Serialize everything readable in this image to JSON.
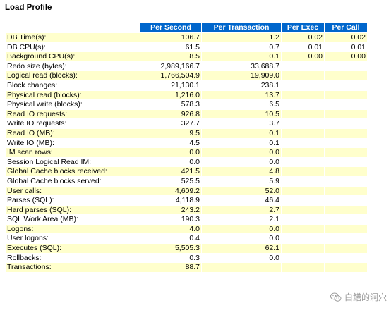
{
  "title": "Load Profile",
  "columns": [
    "",
    "Per Second",
    "Per Transaction",
    "Per Exec",
    "Per Call"
  ],
  "rows": [
    [
      "DB Time(s):",
      "106.7",
      "1.2",
      "0.02",
      "0.02"
    ],
    [
      "DB CPU(s):",
      "61.5",
      "0.7",
      "0.01",
      "0.01"
    ],
    [
      "Background CPU(s):",
      "8.5",
      "0.1",
      "0.00",
      "0.00"
    ],
    [
      "Redo size (bytes):",
      "2,989,166.7",
      "33,688.7",
      "",
      ""
    ],
    [
      "Logical read (blocks):",
      "1,766,504.9",
      "19,909.0",
      "",
      ""
    ],
    [
      "Block changes:",
      "21,130.1",
      "238.1",
      "",
      ""
    ],
    [
      "Physical read (blocks):",
      "1,216.0",
      "13.7",
      "",
      ""
    ],
    [
      "Physical write (blocks):",
      "578.3",
      "6.5",
      "",
      ""
    ],
    [
      "Read IO requests:",
      "926.8",
      "10.5",
      "",
      ""
    ],
    [
      "Write IO requests:",
      "327.7",
      "3.7",
      "",
      ""
    ],
    [
      "Read IO (MB):",
      "9.5",
      "0.1",
      "",
      ""
    ],
    [
      "Write IO (MB):",
      "4.5",
      "0.1",
      "",
      ""
    ],
    [
      "IM scan rows:",
      "0.0",
      "0.0",
      "",
      ""
    ],
    [
      "Session Logical Read IM:",
      "0.0",
      "0.0",
      "",
      ""
    ],
    [
      "Global Cache blocks received:",
      "421.5",
      "4.8",
      "",
      ""
    ],
    [
      "Global Cache blocks served:",
      "525.5",
      "5.9",
      "",
      ""
    ],
    [
      "User calls:",
      "4,609.2",
      "52.0",
      "",
      ""
    ],
    [
      "Parses (SQL):",
      "4,118.9",
      "46.4",
      "",
      ""
    ],
    [
      "Hard parses (SQL):",
      "243.2",
      "2.7",
      "",
      ""
    ],
    [
      "SQL Work Area (MB):",
      "190.3",
      "2.1",
      "",
      ""
    ],
    [
      "Logons:",
      "4.0",
      "0.0",
      "",
      ""
    ],
    [
      "User logons:",
      "0.4",
      "0.0",
      "",
      ""
    ],
    [
      "Executes (SQL):",
      "5,505.3",
      "62.1",
      "",
      ""
    ],
    [
      "Rollbacks:",
      "0.3",
      "0.0",
      "",
      ""
    ],
    [
      "Transactions:",
      "88.7",
      "",
      "",
      ""
    ]
  ],
  "watermark": "白鳝的洞穴",
  "colors": {
    "header_bg": "#0066cc",
    "header_text": "#ffffff",
    "row_alt_bg": "#ffffcc",
    "row_bg": "#ffffff"
  },
  "icons": {
    "watermark": "wechat-icon"
  }
}
